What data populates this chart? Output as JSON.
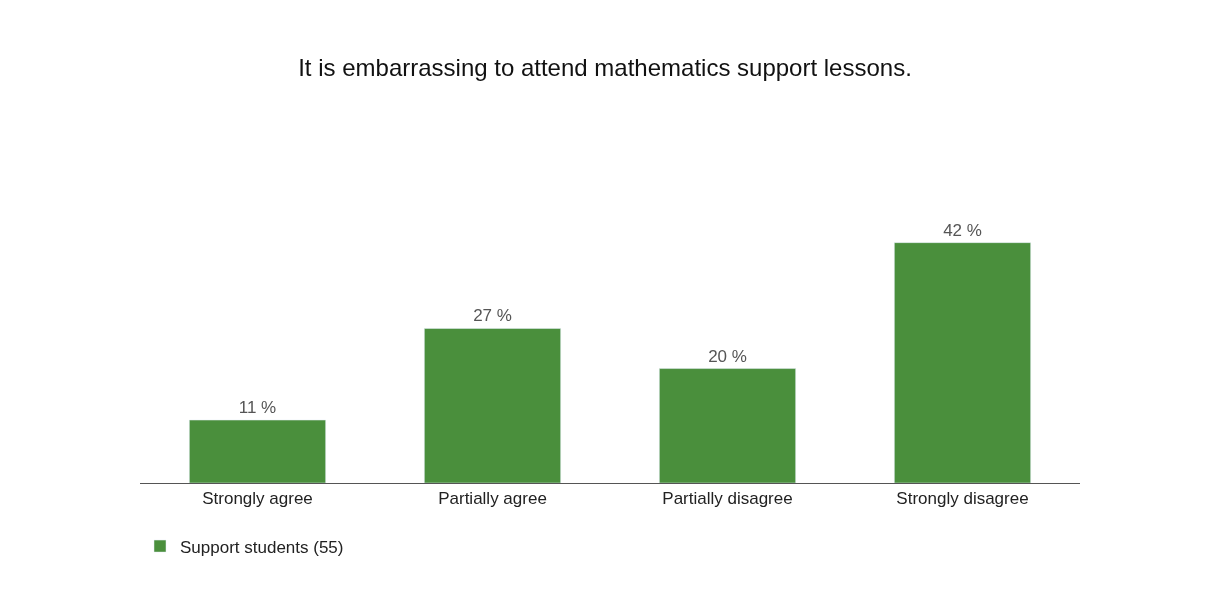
{
  "chart_data": {
    "type": "bar",
    "title": "It is embarrassing to attend mathematics support lessons.",
    "categories": [
      "Strongly agree",
      "Partially agree",
      "Partially disagree",
      "Strongly disagree"
    ],
    "series": [
      {
        "name": "Support students (55)",
        "color": "#4a8f3c",
        "values": [
          11,
          27,
          20,
          42
        ],
        "value_labels": [
          "11 %",
          "27 %",
          "20 %",
          "42 %"
        ]
      }
    ],
    "tick_labels": "x",
    "legend": "bottom left"
  }
}
